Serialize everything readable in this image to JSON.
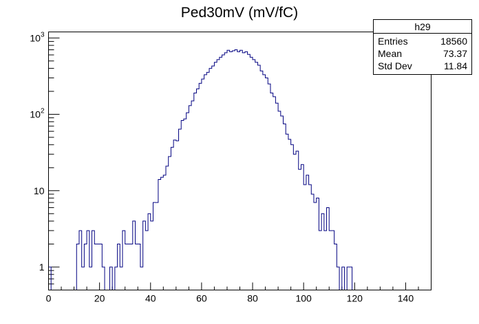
{
  "chart_data": {
    "type": "histogram",
    "title": "Ped30mV (mV/fC)",
    "xlabel": "",
    "ylabel": "",
    "xlim": [
      0,
      150
    ],
    "ylim": [
      0.5,
      1200
    ],
    "yscale": "log",
    "bin_width": 1,
    "line_color": "#000080",
    "x_ticks": [
      0,
      20,
      40,
      60,
      80,
      100,
      120,
      140
    ],
    "y_ticks": [
      {
        "value": 1,
        "label": "1"
      },
      {
        "value": 10,
        "label": "10"
      },
      {
        "value": 100,
        "label": "10",
        "exp": "2"
      },
      {
        "value": 1000,
        "label": "10",
        "exp": "3"
      }
    ],
    "bins": [
      {
        "x": 0,
        "y": 1
      },
      {
        "x": 11,
        "y": 2
      },
      {
        "x": 12,
        "y": 3
      },
      {
        "x": 13,
        "y": 1
      },
      {
        "x": 14,
        "y": 2
      },
      {
        "x": 15,
        "y": 3
      },
      {
        "x": 16,
        "y": 1
      },
      {
        "x": 17,
        "y": 3
      },
      {
        "x": 18,
        "y": 2
      },
      {
        "x": 19,
        "y": 2
      },
      {
        "x": 20,
        "y": 2
      },
      {
        "x": 21,
        "y": 1
      },
      {
        "x": 24,
        "y": 1
      },
      {
        "x": 26,
        "y": 1
      },
      {
        "x": 27,
        "y": 2
      },
      {
        "x": 28,
        "y": 1
      },
      {
        "x": 29,
        "y": 3
      },
      {
        "x": 30,
        "y": 2
      },
      {
        "x": 31,
        "y": 2
      },
      {
        "x": 32,
        "y": 2
      },
      {
        "x": 33,
        "y": 4
      },
      {
        "x": 34,
        "y": 2
      },
      {
        "x": 35,
        "y": 2
      },
      {
        "x": 36,
        "y": 1
      },
      {
        "x": 37,
        "y": 4
      },
      {
        "x": 38,
        "y": 3
      },
      {
        "x": 39,
        "y": 5
      },
      {
        "x": 40,
        "y": 4
      },
      {
        "x": 41,
        "y": 7
      },
      {
        "x": 42,
        "y": 7
      },
      {
        "x": 43,
        "y": 14
      },
      {
        "x": 44,
        "y": 15
      },
      {
        "x": 45,
        "y": 16
      },
      {
        "x": 46,
        "y": 21
      },
      {
        "x": 47,
        "y": 28
      },
      {
        "x": 48,
        "y": 37
      },
      {
        "x": 49,
        "y": 46
      },
      {
        "x": 50,
        "y": 45
      },
      {
        "x": 51,
        "y": 64
      },
      {
        "x": 52,
        "y": 83
      },
      {
        "x": 53,
        "y": 87
      },
      {
        "x": 54,
        "y": 105
      },
      {
        "x": 55,
        "y": 130
      },
      {
        "x": 56,
        "y": 150
      },
      {
        "x": 57,
        "y": 190
      },
      {
        "x": 58,
        "y": 215
      },
      {
        "x": 59,
        "y": 255
      },
      {
        "x": 60,
        "y": 290
      },
      {
        "x": 61,
        "y": 330
      },
      {
        "x": 62,
        "y": 355
      },
      {
        "x": 63,
        "y": 400
      },
      {
        "x": 64,
        "y": 430
      },
      {
        "x": 65,
        "y": 480
      },
      {
        "x": 66,
        "y": 520
      },
      {
        "x": 67,
        "y": 560
      },
      {
        "x": 68,
        "y": 600
      },
      {
        "x": 69,
        "y": 640
      },
      {
        "x": 70,
        "y": 690
      },
      {
        "x": 71,
        "y": 660
      },
      {
        "x": 72,
        "y": 680
      },
      {
        "x": 73,
        "y": 700
      },
      {
        "x": 74,
        "y": 660
      },
      {
        "x": 75,
        "y": 690
      },
      {
        "x": 76,
        "y": 640
      },
      {
        "x": 77,
        "y": 660
      },
      {
        "x": 78,
        "y": 610
      },
      {
        "x": 79,
        "y": 560
      },
      {
        "x": 80,
        "y": 520
      },
      {
        "x": 81,
        "y": 480
      },
      {
        "x": 82,
        "y": 440
      },
      {
        "x": 83,
        "y": 370
      },
      {
        "x": 84,
        "y": 330
      },
      {
        "x": 85,
        "y": 300
      },
      {
        "x": 86,
        "y": 250
      },
      {
        "x": 87,
        "y": 190
      },
      {
        "x": 88,
        "y": 170
      },
      {
        "x": 89,
        "y": 140
      },
      {
        "x": 90,
        "y": 110
      },
      {
        "x": 91,
        "y": 95
      },
      {
        "x": 92,
        "y": 75
      },
      {
        "x": 93,
        "y": 55
      },
      {
        "x": 94,
        "y": 47
      },
      {
        "x": 95,
        "y": 40
      },
      {
        "x": 96,
        "y": 30
      },
      {
        "x": 97,
        "y": 33
      },
      {
        "x": 98,
        "y": 19
      },
      {
        "x": 99,
        "y": 22
      },
      {
        "x": 100,
        "y": 12
      },
      {
        "x": 101,
        "y": 16
      },
      {
        "x": 102,
        "y": 12
      },
      {
        "x": 103,
        "y": 9
      },
      {
        "x": 104,
        "y": 7
      },
      {
        "x": 105,
        "y": 8
      },
      {
        "x": 106,
        "y": 3
      },
      {
        "x": 107,
        "y": 5
      },
      {
        "x": 108,
        "y": 3
      },
      {
        "x": 109,
        "y": 6
      },
      {
        "x": 110,
        "y": 3
      },
      {
        "x": 111,
        "y": 3
      },
      {
        "x": 112,
        "y": 2
      },
      {
        "x": 113,
        "y": 1
      },
      {
        "x": 114,
        "y": 0
      },
      {
        "x": 115,
        "y": 1
      },
      {
        "x": 116,
        "y": 0
      },
      {
        "x": 117,
        "y": 1
      },
      {
        "x": 118,
        "y": 1
      }
    ]
  },
  "stats_box": {
    "name": "h29",
    "rows": [
      {
        "label": "Entries",
        "value": "18560"
      },
      {
        "label": "Mean",
        "value": "73.37"
      },
      {
        "label": "Std Dev",
        "value": "11.84"
      }
    ]
  }
}
